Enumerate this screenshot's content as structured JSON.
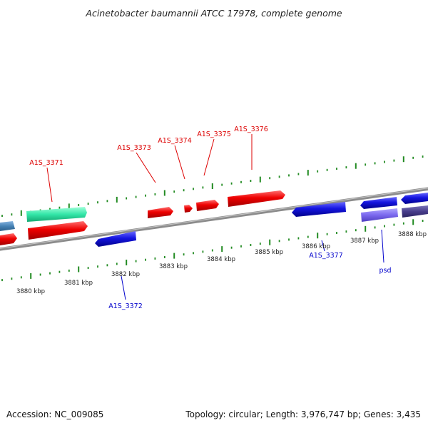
{
  "title": "Acinetobacter baumannii ATCC 17978, complete genome",
  "accession": "Accession: NC_009085",
  "summary": "Topology: circular; Length: 3,976,747 bp; Genes: 3,435",
  "colors": {
    "forward_gene": "#ff0000",
    "reverse_gene": "#0000ee",
    "ruler_tick": "#228b22",
    "backbone": "#8c8c8c"
  },
  "kbp_labels": [
    "3880 kbp",
    "3881 kbp",
    "3882 kbp",
    "3883 kbp",
    "3884 kbp",
    "3885 kbp",
    "3886 kbp",
    "3887 kbp",
    "3888 kbp"
  ],
  "gene_labels": [
    {
      "text": "A1S_3371",
      "strand": "forward"
    },
    {
      "text": "A1S_3373",
      "strand": "forward"
    },
    {
      "text": "A1S_3374",
      "strand": "forward"
    },
    {
      "text": "A1S_3375",
      "strand": "forward"
    },
    {
      "text": "A1S_3376",
      "strand": "forward"
    },
    {
      "text": "A1S_3372",
      "strand": "reverse"
    },
    {
      "text": "A1S_3377",
      "strand": "reverse"
    },
    {
      "text": "psd",
      "strand": "reverse"
    }
  ]
}
